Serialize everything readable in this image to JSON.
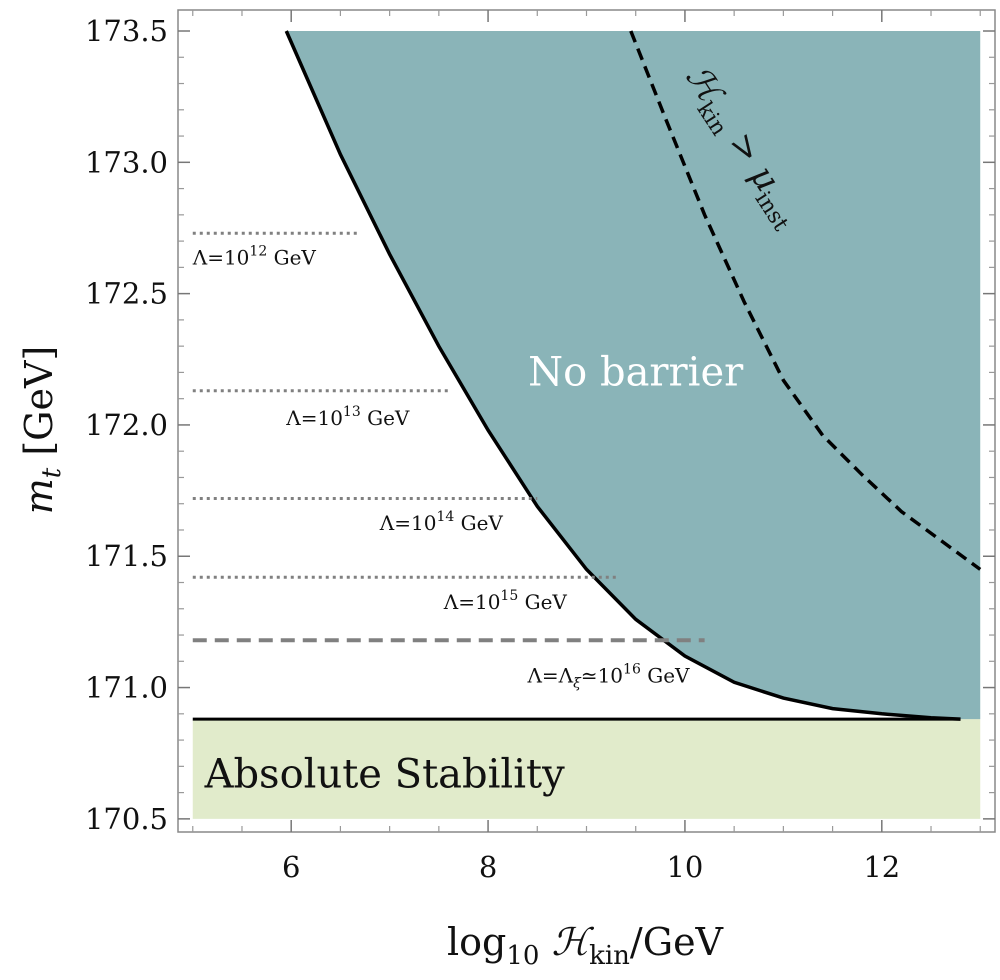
{
  "chart_data": {
    "type": "area",
    "xlabel": {
      "prefix": "log",
      "sub": "10",
      "main": " ℋ",
      "sub2": "kin",
      "suffix": "/GeV"
    },
    "ylabel": {
      "main": "m",
      "sub": "t",
      "suffix": " [GeV]"
    },
    "xlim": [
      4.85,
      13.15
    ],
    "ylim": [
      170.45,
      173.58
    ],
    "x_ticks": [
      6,
      8,
      10,
      12
    ],
    "x_tick_labels": [
      "6",
      "8",
      "10",
      "12"
    ],
    "y_ticks": [
      170.5,
      171.0,
      171.5,
      172.0,
      172.5,
      173.0,
      173.5
    ],
    "y_tick_labels": [
      "170.5",
      "171.0",
      "171.5",
      "172.0",
      "172.5",
      "173.0",
      "173.5"
    ],
    "stability": {
      "label": "Absolute Stability",
      "mt_max": 170.88,
      "x_range": [
        5.0,
        13.0
      ],
      "color": "#e1ebcb"
    },
    "no_barrier": {
      "label": "No barrier",
      "color": "#8ab4b8",
      "boundary": {
        "x": [
          5.95,
          6.5,
          7.0,
          7.5,
          8.0,
          8.5,
          9.0,
          9.5,
          10.0,
          10.5,
          11.0,
          11.5,
          12.0,
          12.5,
          12.8
        ],
        "y": [
          173.5,
          173.03,
          172.65,
          172.3,
          171.98,
          171.69,
          171.45,
          171.26,
          171.12,
          171.02,
          170.96,
          170.92,
          170.9,
          170.885,
          170.88
        ]
      }
    },
    "instability_curve": {
      "label_main": "ℋ",
      "label_sub": "kin",
      "label_rel": " > μ",
      "label_sub2": "inst",
      "x": [
        9.45,
        9.8,
        10.2,
        10.6,
        11.0,
        11.4,
        11.8,
        12.2,
        12.6,
        13.0
      ],
      "y": [
        173.5,
        173.17,
        172.8,
        172.47,
        172.17,
        171.96,
        171.81,
        171.67,
        171.56,
        171.45
      ]
    },
    "cutoffs": [
      {
        "label_pre": "Λ=10",
        "label_exp": "12",
        "label_post": " GeV",
        "mt": 172.73,
        "x_end": 6.7,
        "style": "dotted",
        "label_x": 5.0,
        "label_y": 172.61
      },
      {
        "label_pre": "Λ=10",
        "label_exp": "13",
        "label_post": " GeV",
        "mt": 172.13,
        "x_end": 7.6,
        "style": "dotted",
        "label_x": 5.95,
        "label_y": 172.0
      },
      {
        "label_pre": "Λ=10",
        "label_exp": "14",
        "label_post": " GeV",
        "mt": 171.72,
        "x_end": 8.5,
        "style": "dotted",
        "label_x": 6.9,
        "label_y": 171.6
      },
      {
        "label_pre": "Λ=10",
        "label_exp": "15",
        "label_post": " GeV",
        "mt": 171.42,
        "x_end": 9.3,
        "style": "dotted",
        "label_x": 7.55,
        "label_y": 171.3
      },
      {
        "label_pre": "Λ=Λ",
        "label_sub": "ξ",
        "label_mid": "≃10",
        "label_exp": "16",
        "label_post": " GeV",
        "mt": 171.18,
        "x_end": 10.2,
        "style": "dashed",
        "label_x": 8.4,
        "label_y": 171.02
      }
    ]
  }
}
